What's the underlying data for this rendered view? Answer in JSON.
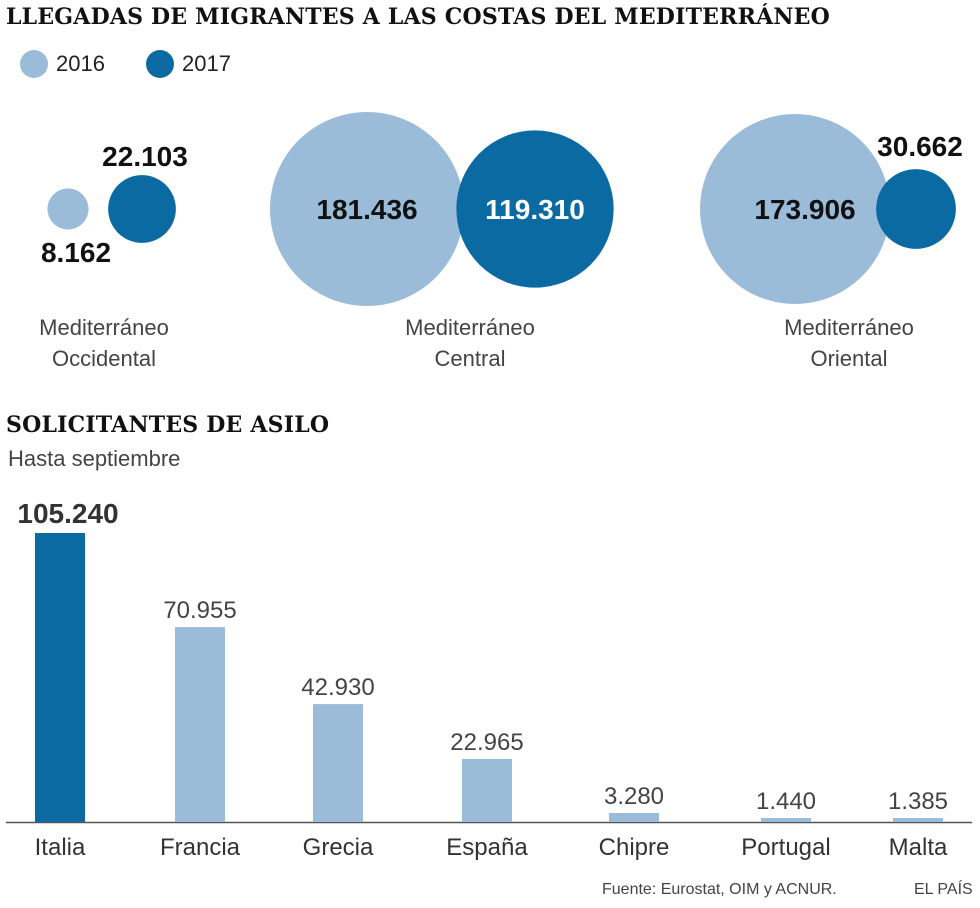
{
  "colors": {
    "y2016": "#9bbcd8",
    "y2017": "#0b6aa1",
    "text": "#222222",
    "muted": "#444444"
  },
  "title1": "LLEGADAS DE MIGRANTES A LAS COSTAS DEL MEDITERRÁNEO",
  "legend": [
    {
      "label": "2016"
    },
    {
      "label": "2017"
    }
  ],
  "title2": "SOLICITANTES DE ASILO",
  "subtitle2": "Hasta septiembre",
  "footer": {
    "source": "Fuente: Eurostat, OIM y ACNUR.",
    "brand": "EL PAÍS"
  },
  "chart_data": [
    {
      "type": "bubble",
      "title": "LLEGADAS DE MIGRANTES A LAS COSTAS DEL MEDITERRÁNEO",
      "series_names": [
        "2016",
        "2017"
      ],
      "regions": [
        {
          "name_line1": "Mediterráneo",
          "name_line2": "Occidental",
          "v2016": 8162,
          "v2017": 22103,
          "label2016": "8.162",
          "label2017": "22.103"
        },
        {
          "name_line1": "Mediterráneo",
          "name_line2": "Central",
          "v2016": 181436,
          "v2017": 119310,
          "label2016": "181.436",
          "label2017": "119.310"
        },
        {
          "name_line1": "Mediterráneo",
          "name_line2": "Oriental",
          "v2016": 173906,
          "v2017": 30662,
          "label2016": "173.906",
          "label2017": "30.662"
        }
      ]
    },
    {
      "type": "bar",
      "title": "SOLICITANTES DE ASILO",
      "subtitle": "Hasta septiembre",
      "categories": [
        "Italia",
        "Francia",
        "Grecia",
        "España",
        "Chipre",
        "Portugal",
        "Malta"
      ],
      "values": [
        105240,
        70955,
        42930,
        22965,
        3280,
        1440,
        1385
      ],
      "labels": [
        "105.240",
        "70.955",
        "42.930",
        "22.965",
        "3.280",
        "1.440",
        "1.385"
      ],
      "highlight": "Italia",
      "ylim": [
        0,
        105240
      ]
    }
  ]
}
